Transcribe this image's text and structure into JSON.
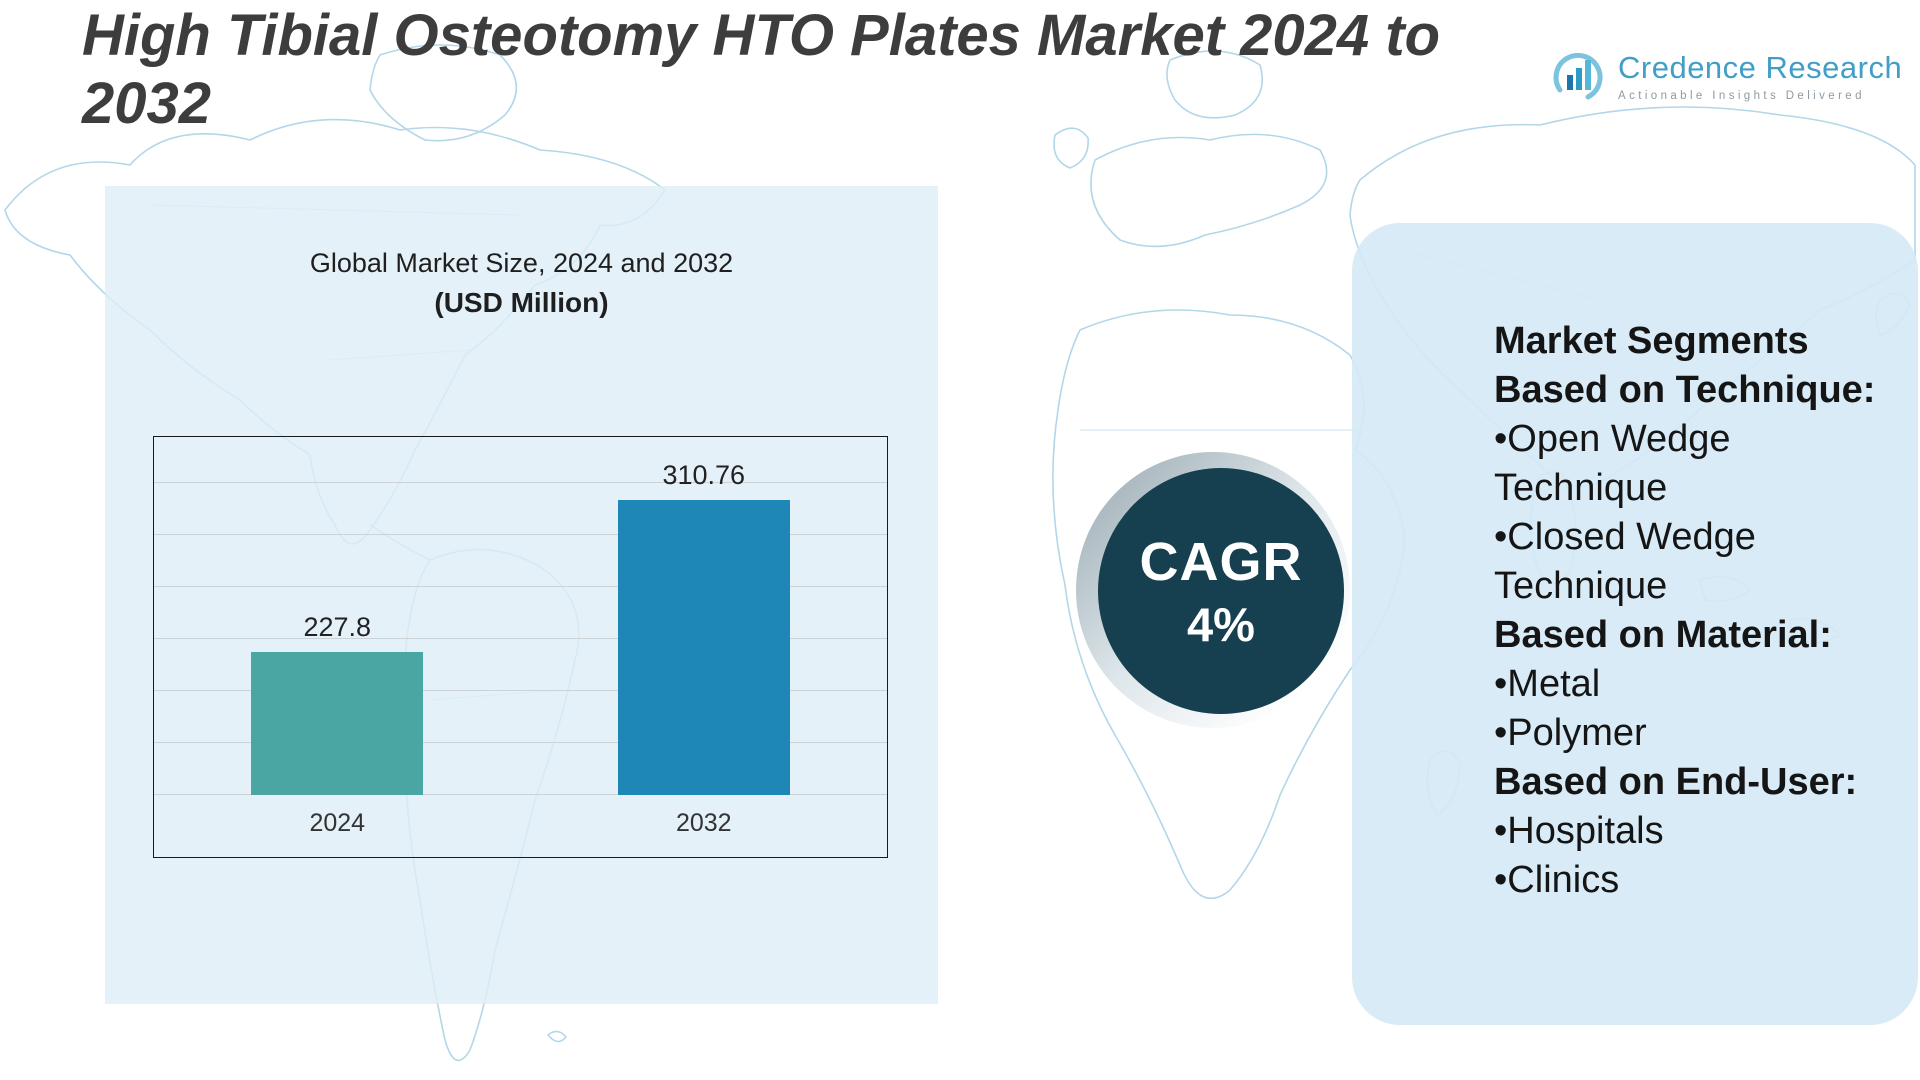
{
  "title": "High Tibial Osteotomy HTO Plates Market 2024 to 2032",
  "logo": {
    "brand": "Credence Research",
    "tagline": "Actionable Insights Delivered"
  },
  "chart_panel": {
    "title_line1": "Global Market Size, 2024 and 2032",
    "title_line2": "(USD Million)"
  },
  "chart_data": {
    "type": "bar",
    "title": "Global Market Size, 2024 and 2032 (USD Million)",
    "categories": [
      "2024",
      "2032"
    ],
    "values": [
      227.8,
      310.76
    ],
    "xlabel": "",
    "ylabel": "",
    "ylim": [
      150,
      345
    ],
    "grid": true,
    "legend": false,
    "bar_colors": [
      "#4aa6a3",
      "#1f87b8"
    ]
  },
  "cagr_badge": {
    "label": "CAGR",
    "value": "4%",
    "bg_color": "#16404f"
  },
  "segments_panel": {
    "heading": "Market Segments",
    "groups": [
      {
        "label": "Based on Technique:",
        "items": [
          "•Open Wedge Technique",
          "•Closed Wedge Technique"
        ]
      },
      {
        "label": "Based on Material:",
        "items": [
          "•Metal",
          "•Polymer"
        ]
      },
      {
        "label": "Based on End-User:",
        "items": [
          "•Hospitals",
          "•Clinics"
        ]
      }
    ]
  }
}
